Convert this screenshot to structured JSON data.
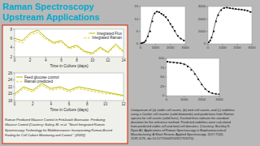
{
  "title": "Raman Spectroscopy",
  "subtitle": "Upstream Applications",
  "annotations": [
    "Raman Predicted Glucose Control in Fed-batch Bioreactor. Predicting\nGlucose Control (Courtesy: Sabey, M. et al. \"Novel Integrated Raman\nSpectroscopy Technology for Multibioreactors Incorporating Raman-Based\nFouling for Cell Culture Monitoring and Control.\" (2020))",
    "Comparison of (a) viable cell counts, (b) total cell counts, and (c) viabilities\nusing a Coulter cell counter (solid diamonds) and predictions from Raman\nspectra for cell counts (solid lines). Dashed lines indicate the standard\ndeviation for the reference method. Predicted viabilities were calculated\nfrom predicted viable-cell and total-cell densities. (Courtesy: Buckley K,\nRyan AJ. Applications of Raman Spectroscopy in Biopharmaceutical\nManufacturing: A Short Review. Applied Spectroscopy. 2017;71(6):\n1139-1176. doi:10.1177/0003702817703270)"
  ],
  "chart_data": [
    {
      "type": "line",
      "x_label": "Time in Culture (days)",
      "x": [
        0,
        1,
        2,
        3,
        4,
        5,
        6,
        7,
        8,
        9,
        10,
        11,
        12,
        13,
        14
      ],
      "series": [
        {
          "name": "Integrated Flux",
          "color": "#b8b800",
          "line_style": "solid",
          "values": [
            6.0,
            5.5,
            7.2,
            7.8,
            6.2,
            5.1,
            5.5,
            4.0,
            4.5,
            3.2,
            2.8,
            4.1,
            3.0,
            4.8,
            3.2
          ]
        },
        {
          "name": "Integrated Raman",
          "color": "#e0d020",
          "line_style": "dashed",
          "values": [
            5.5,
            5.0,
            6.8,
            7.3,
            5.9,
            4.8,
            5.2,
            3.7,
            4.2,
            3.0,
            2.5,
            3.8,
            2.8,
            4.4,
            3.0
          ]
        }
      ],
      "xlim": [
        0,
        14
      ],
      "xticks": [
        0,
        2,
        4,
        6,
        8,
        10,
        12,
        14
      ],
      "ylim": [
        2,
        8
      ],
      "yticks": [
        2,
        4,
        6,
        8
      ],
      "grid": false,
      "legend": "upper right"
    },
    {
      "type": "line",
      "x_label": "Time in Culture (days)",
      "x": [
        0,
        1,
        2,
        3,
        4,
        5,
        6,
        7,
        8,
        9,
        10,
        11,
        12
      ],
      "series": [
        {
          "name": "Feed glucose control",
          "color": "#b8b800",
          "line_style": "solid",
          "values": [
            20,
            22,
            21,
            23,
            21.5,
            22,
            21,
            22,
            21.5,
            21,
            20.5,
            20,
            19.5
          ]
        },
        {
          "name": "Raman predicted",
          "color": "#e0d020",
          "line_style": "dashed",
          "values": [
            19.5,
            21.5,
            20.5,
            22.5,
            21,
            21.5,
            20.5,
            21.5,
            21,
            20.5,
            20,
            19.8,
            19.2
          ]
        }
      ],
      "xlim": [
        0,
        12
      ],
      "xticks": [
        0,
        2,
        4,
        6,
        8,
        10,
        12
      ],
      "ylim": [
        18,
        26
      ],
      "yticks": [
        18,
        20,
        22,
        24,
        26
      ],
      "grid": false,
      "legend": "upper left"
    },
    {
      "type": "line",
      "series": [
        {
          "type": "line",
          "color": "#666666",
          "line_style": "solid",
          "x": [
            0,
            100,
            200,
            300,
            400,
            500,
            600,
            700,
            800,
            900,
            1000,
            1100,
            1200,
            1300,
            1400,
            1500,
            1600,
            1700,
            1800,
            1900,
            2000,
            2100,
            2200,
            2300,
            2400,
            2500,
            2600,
            2700,
            2800,
            2900,
            3000
          ],
          "values": [
            0.2,
            0.3,
            0.5,
            1.0,
            2.0,
            3.5,
            5.5,
            8.0,
            10.5,
            12.0,
            12.8,
            13.0,
            12.8,
            12.5,
            12.0,
            11.5,
            11.0,
            10.5,
            10.0,
            9.0,
            8.0,
            7.0,
            6.0,
            5.0,
            4.0,
            3.0,
            2.5,
            2.0,
            1.8,
            1.5,
            1.2
          ]
        },
        {
          "type": "scatter",
          "color": "#000000",
          "marker": "square",
          "x": [
            50,
            150,
            250,
            350,
            500,
            650,
            800,
            950,
            1100,
            1250,
            1400,
            1550,
            1700,
            1850,
            2000,
            2150,
            2300,
            2500,
            2700,
            2900
          ],
          "values": [
            0.25,
            0.4,
            0.6,
            1.2,
            3.0,
            5.0,
            9.0,
            12.2,
            12.9,
            12.7,
            12.1,
            11.6,
            10.8,
            9.5,
            8.0,
            6.8,
            5.2,
            3.2,
            2.1,
            1.3
          ]
        }
      ],
      "xlim": [
        0,
        3000
      ],
      "xticks": [
        0,
        1000,
        2000,
        3000
      ],
      "ylim": [
        0,
        15
      ],
      "yticks": [
        0,
        5,
        10,
        15
      ],
      "grid": false
    },
    {
      "type": "line",
      "series": [
        {
          "type": "line",
          "color": "#666666",
          "line_style": "solid",
          "x": [
            0,
            100,
            200,
            300,
            400,
            500,
            600,
            700,
            800,
            900,
            1000,
            1100,
            1200,
            1300,
            1400,
            1500,
            1600,
            1700,
            1800,
            1900,
            2000,
            2100,
            2200,
            2300,
            2400,
            2500,
            2600,
            2700,
            2800,
            2900,
            3000
          ],
          "values": [
            100,
            200,
            400,
            700,
            1200,
            1700,
            2100,
            2400,
            2600,
            2750,
            2850,
            2900,
            2920,
            2900,
            2880,
            2860,
            2840,
            2820,
            2800,
            2790,
            2780,
            2770,
            2760,
            2750,
            2730,
            2710,
            2680,
            2650,
            2620,
            2580,
            2540
          ]
        },
        {
          "type": "scatter",
          "color": "#000000",
          "marker": "square",
          "x": [
            50,
            150,
            250,
            400,
            550,
            700,
            900,
            1100,
            1300,
            1500,
            1700,
            1900,
            2100,
            2300,
            2500,
            2700,
            2900
          ],
          "values": [
            120,
            250,
            500,
            1000,
            1800,
            2300,
            2700,
            2870,
            2910,
            2870,
            2840,
            2800,
            2770,
            2750,
            2710,
            2660,
            2560
          ]
        }
      ],
      "xlim": [
        0,
        3000
      ],
      "xticks": [
        0,
        1000,
        2000,
        3000
      ],
      "ylim": [
        0,
        3000
      ],
      "yticks": [
        0,
        1000,
        2000,
        3000
      ],
      "grid": false
    },
    {
      "type": "line",
      "series": [
        {
          "type": "line",
          "color": "#666666",
          "line_style": "solid",
          "x": [
            0,
            100,
            200,
            300,
            400,
            500,
            600,
            700,
            800,
            900,
            1000,
            1100,
            1200,
            1300,
            1400,
            1500,
            1600,
            1700,
            1800,
            1900,
            2000,
            2100,
            2200,
            2300,
            2400,
            2500,
            2600,
            2700,
            2800,
            2900,
            3000
          ],
          "values": [
            92,
            91,
            90,
            90,
            89,
            89,
            88,
            88,
            87,
            86,
            85,
            83,
            80,
            77,
            72,
            67,
            60,
            53,
            45,
            38,
            30,
            24,
            18,
            14,
            10,
            8,
            6,
            5,
            5,
            4,
            4
          ]
        },
        {
          "type": "scatter",
          "color": "#000000",
          "marker": "square",
          "x": [
            50,
            200,
            400,
            600,
            800,
            1000,
            1200,
            1400,
            1600,
            1800,
            2000,
            2200,
            2400,
            2600,
            2800,
            3000
          ],
          "values": [
            91,
            90,
            89,
            88,
            87,
            84,
            78,
            69,
            58,
            44,
            30,
            18,
            11,
            7,
            5,
            4
          ]
        }
      ],
      "xlim": [
        0,
        3000
      ],
      "xticks": [
        0,
        1000,
        2000,
        3000
      ],
      "ylim": [
        0,
        100
      ],
      "yticks": [
        0,
        25,
        50,
        75,
        100
      ],
      "grid": false
    }
  ]
}
